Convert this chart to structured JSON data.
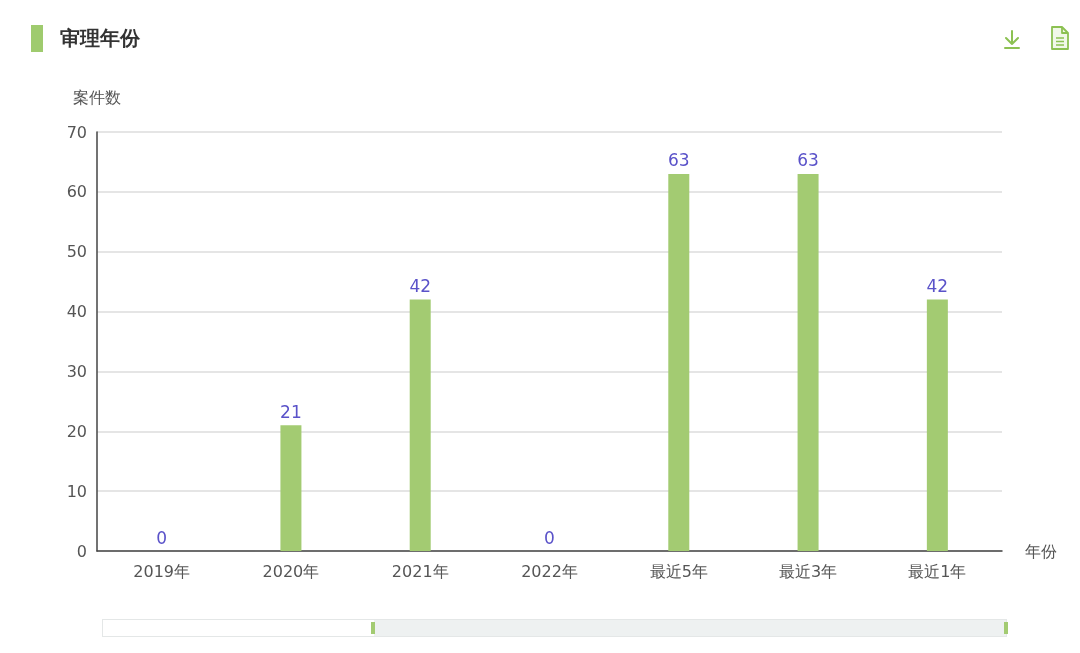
{
  "chart_data": {
    "type": "bar",
    "title": "审理年份",
    "xlabel": "年份",
    "ylabel": "案件数",
    "categories": [
      "2019年",
      "2020年",
      "2021年",
      "2022年",
      "最近5年",
      "最近3年",
      "最近1年"
    ],
    "values": [
      0,
      21,
      42,
      0,
      63,
      63,
      42
    ],
    "color": "#a3cb72",
    "ylim": [
      0,
      70
    ],
    "yticks": [
      0,
      10,
      20,
      30,
      40,
      50,
      60,
      70
    ],
    "grid": "y",
    "data_labels": true
  }
}
